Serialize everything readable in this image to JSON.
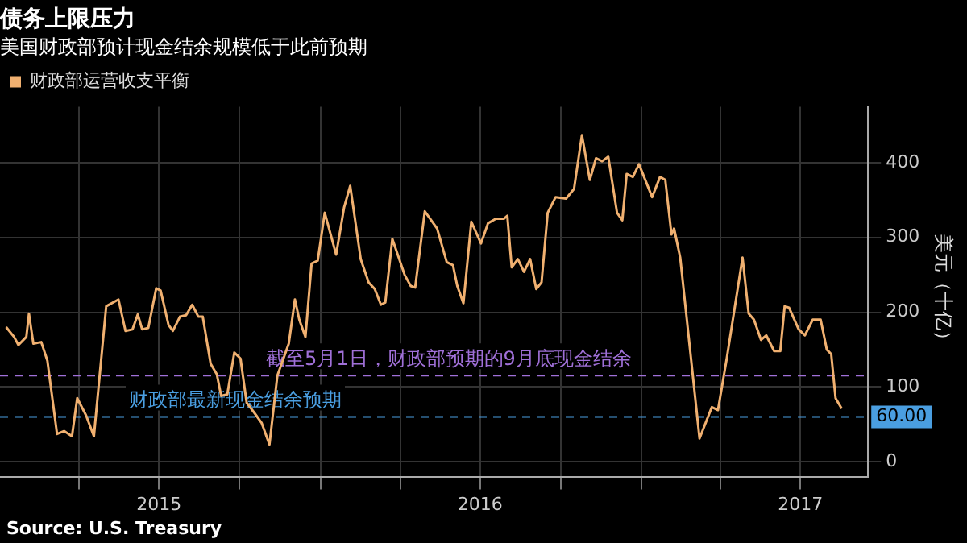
{
  "chart_data": {
    "type": "line",
    "title": "债务上限压力",
    "subtitle": "美国财政部预计现金结余规模低于此前预期",
    "ylabel": "美元（十亿）",
    "x": [
      "2015-01-08",
      "2015-01-17",
      "2015-01-22",
      "2015-01-31",
      "2015-02-03",
      "2015-02-08",
      "2015-02-17",
      "2015-02-24",
      "2015-03-07",
      "2015-03-15",
      "2015-03-24",
      "2015-03-30",
      "2015-04-09",
      "2015-04-18",
      "2015-05-02",
      "2015-05-16",
      "2015-05-24",
      "2015-06-01",
      "2015-06-07",
      "2015-06-12",
      "2015-06-19",
      "2015-06-28",
      "2015-07-03",
      "2015-07-12",
      "2015-07-17",
      "2015-07-25",
      "2015-08-01",
      "2015-08-08",
      "2015-08-15",
      "2015-08-20",
      "2015-08-29",
      "2015-09-05",
      "2015-09-10",
      "2015-09-17",
      "2015-09-25",
      "2015-10-02",
      "2015-10-09",
      "2015-10-18",
      "2015-10-26",
      "2015-11-04",
      "2015-11-13",
      "2015-11-26",
      "2015-12-03",
      "2015-12-08",
      "2015-12-15",
      "2015-12-22",
      "2015-12-29",
      "2016-01-06",
      "2016-01-19",
      "2016-01-28",
      "2016-02-04",
      "2016-02-16",
      "2016-02-25",
      "2016-03-03",
      "2016-03-10",
      "2016-03-15",
      "2016-03-23",
      "2016-04-06",
      "2016-04-13",
      "2016-04-18",
      "2016-04-29",
      "2016-05-13",
      "2016-05-24",
      "2016-05-31",
      "2016-06-05",
      "2016-06-12",
      "2016-06-21",
      "2016-07-02",
      "2016-07-10",
      "2016-07-19",
      "2016-07-28",
      "2016-08-01",
      "2016-08-06",
      "2016-08-13",
      "2016-08-20",
      "2016-08-27",
      "2016-09-03",
      "2016-09-09",
      "2016-09-16",
      "2016-09-25",
      "2016-10-07",
      "2016-10-16",
      "2016-10-25",
      "2016-11-03",
      "2016-11-10",
      "2016-11-17",
      "2016-11-24",
      "2016-12-04",
      "2016-12-10",
      "2016-12-15",
      "2016-12-22",
      "2016-12-29",
      "2017-01-13",
      "2017-01-22",
      "2017-01-28",
      "2017-02-04",
      "2017-02-07",
      "2017-02-14",
      "2017-03-08",
      "2017-03-22",
      "2017-03-29",
      "2017-04-08",
      "2017-04-26",
      "2017-05-03",
      "2017-05-09",
      "2017-05-17",
      "2017-05-23",
      "2017-06-01",
      "2017-06-08",
      "2017-06-13",
      "2017-06-18",
      "2017-06-29",
      "2017-07-06",
      "2017-07-15",
      "2017-07-24",
      "2017-07-31",
      "2017-08-05",
      "2017-08-10",
      "2017-08-17"
    ],
    "series": [
      {
        "name": "财政部运营收支平衡",
        "color": "#f0b070",
        "values": [
          180,
          167,
          156,
          167,
          198,
          158,
          160,
          135,
          37,
          41,
          34,
          85,
          62,
          34,
          208,
          217,
          175,
          177,
          197,
          177,
          179,
          232,
          229,
          183,
          175,
          194,
          196,
          210,
          194,
          194,
          131,
          117,
          88,
          90,
          146,
          138,
          79,
          65,
          52,
          23,
          115,
          158,
          217,
          190,
          167,
          265,
          269,
          333,
          277,
          340,
          369,
          271,
          240,
          231,
          210,
          213,
          298,
          250,
          235,
          233,
          335,
          312,
          267,
          263,
          235,
          212,
          321,
          292,
          319,
          325,
          325,
          329,
          260,
          271,
          254,
          271,
          231,
          240,
          333,
          354,
          352,
          365,
          437,
          377,
          406,
          402,
          408,
          333,
          323,
          385,
          381,
          398,
          354,
          381,
          377,
          304,
          312,
          273,
          31,
          73,
          69,
          138,
          273,
          198,
          190,
          163,
          169,
          148,
          148,
          208,
          206,
          177,
          169,
          190,
          190,
          150,
          144,
          85,
          71
        ]
      }
    ],
    "xlim": [
      "2015-01-01",
      "2017-09-16"
    ],
    "xticks": [
      {
        "value": "2015-04-01",
        "label": null
      },
      {
        "value": "2015-07-01",
        "label": "2015"
      },
      {
        "value": "2015-10-01",
        "label": null
      },
      {
        "value": "2016-01-01",
        "label": null
      },
      {
        "value": "2016-04-01",
        "label": null
      },
      {
        "value": "2016-07-01",
        "label": "2016"
      },
      {
        "value": "2016-10-01",
        "label": null
      },
      {
        "value": "2017-01-01",
        "label": null
      },
      {
        "value": "2017-04-01",
        "label": null
      },
      {
        "value": "2017-07-01",
        "label": "2017"
      }
    ],
    "ylim": [
      -20,
      475
    ],
    "yticks": [
      0,
      100,
      200,
      300,
      400
    ],
    "grid": true,
    "legend": "top left",
    "marker": "none",
    "line_style": "solid",
    "ref_lines": [
      {
        "axis": "y",
        "value": 115,
        "label": "截至5月1日，财政部预期的9月底现金结余",
        "color": "#a070d8",
        "line_style": "dashed"
      },
      {
        "axis": "y",
        "value": 60,
        "label": "财政部最新现金结余预期",
        "color": "#4a9ee0",
        "line_style": "dashed"
      }
    ],
    "annotations": [
      {
        "text": "60.00",
        "y": 60
      },
      "Source: U.S. Treasury"
    ]
  }
}
